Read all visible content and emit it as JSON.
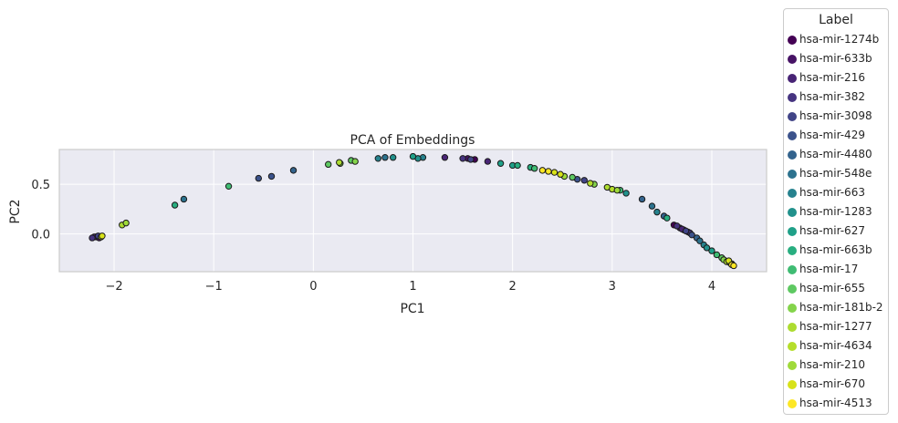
{
  "chart_data": {
    "type": "scatter",
    "title": "PCA of Embeddings",
    "xlabel": "PC1",
    "ylabel": "PC2",
    "xlim": [
      -2.55,
      4.55
    ],
    "ylim": [
      -0.38,
      0.85
    ],
    "xticks": [
      -2,
      -1,
      0,
      1,
      2,
      3,
      4
    ],
    "xtick_labels": [
      "−2",
      "−1",
      "0",
      "1",
      "2",
      "3",
      "4"
    ],
    "yticks": [
      0.0,
      0.5
    ],
    "ytick_labels": [
      "0.0",
      "0.5"
    ],
    "grid": true,
    "legend_title": "Label",
    "legend_placement": "outside-right",
    "series": [
      {
        "name": "hsa-mir-1274b",
        "color": "#440154",
        "x": [
          -2.18,
          3.62,
          3.72,
          1.62
        ],
        "y": [
          -0.03,
          0.09,
          0.04,
          0.75
        ]
      },
      {
        "name": "hsa-mir-633b",
        "color": "#471365",
        "x": [
          -2.15,
          3.68,
          3.76,
          1.55
        ],
        "y": [
          -0.04,
          0.06,
          0.02,
          0.76
        ]
      },
      {
        "name": "hsa-mir-216",
        "color": "#482475",
        "x": [
          -2.2,
          1.32,
          3.7,
          1.75
        ],
        "y": [
          -0.03,
          0.77,
          0.05,
          0.73
        ]
      },
      {
        "name": "hsa-mir-382",
        "color": "#463480",
        "x": [
          -2.22,
          1.5,
          3.65,
          3.78
        ],
        "y": [
          -0.04,
          0.76,
          0.08,
          0.01
        ]
      },
      {
        "name": "hsa-mir-3098",
        "color": "#414487",
        "x": [
          -2.16,
          1.58,
          3.74,
          2.72
        ],
        "y": [
          -0.02,
          0.75,
          0.03,
          0.54
        ]
      },
      {
        "name": "hsa-mir-429",
        "color": "#3b528b",
        "x": [
          -0.55,
          -0.42,
          2.65,
          3.8
        ],
        "y": [
          0.56,
          0.58,
          0.55,
          -0.01
        ]
      },
      {
        "name": "hsa-mir-4480",
        "color": "#33638d",
        "x": [
          -0.2,
          3.3,
          3.52,
          3.85
        ],
        "y": [
          0.64,
          0.35,
          0.18,
          -0.04
        ]
      },
      {
        "name": "hsa-mir-548e",
        "color": "#2c728e",
        "x": [
          -1.3,
          0.72,
          3.4,
          3.88
        ],
        "y": [
          0.35,
          0.77,
          0.28,
          -0.07
        ]
      },
      {
        "name": "hsa-mir-663",
        "color": "#26828e",
        "x": [
          0.65,
          1.1,
          3.45,
          3.92
        ],
        "y": [
          0.76,
          0.77,
          0.22,
          -0.11
        ]
      },
      {
        "name": "hsa-mir-1283",
        "color": "#21918c",
        "x": [
          0.8,
          1.05,
          3.95,
          3.14
        ],
        "y": [
          0.77,
          0.76,
          -0.14,
          0.41
        ]
      },
      {
        "name": "hsa-mir-627",
        "color": "#1fa088",
        "x": [
          1.0,
          1.88,
          2.0,
          4.0
        ],
        "y": [
          0.78,
          0.71,
          0.69,
          -0.17
        ]
      },
      {
        "name": "hsa-mir-663b",
        "color": "#28ae80",
        "x": [
          -1.39,
          2.05,
          2.18,
          3.55
        ],
        "y": [
          0.29,
          0.69,
          0.67,
          0.16
        ]
      },
      {
        "name": "hsa-mir-17",
        "color": "#3fbc73",
        "x": [
          -0.85,
          2.22,
          3.08,
          4.05
        ],
        "y": [
          0.48,
          0.66,
          0.44,
          -0.21
        ]
      },
      {
        "name": "hsa-mir-655",
        "color": "#5ec962",
        "x": [
          0.15,
          0.38,
          2.6,
          4.1
        ],
        "y": [
          0.7,
          0.74,
          0.57,
          -0.24
        ]
      },
      {
        "name": "hsa-mir-181b-2",
        "color": "#84d44b",
        "x": [
          0.27,
          0.42,
          2.82,
          4.12
        ],
        "y": [
          0.71,
          0.73,
          0.5,
          -0.26
        ]
      },
      {
        "name": "hsa-mir-1277",
        "color": "#addc30",
        "x": [
          -1.92,
          0.26,
          2.95,
          4.15
        ],
        "y": [
          0.09,
          0.72,
          0.47,
          -0.28
        ]
      },
      {
        "name": "hsa-mir-4634",
        "color": "#b5de2b",
        "x": [
          -2.13,
          3.0,
          4.18,
          2.78
        ],
        "y": [
          -0.03,
          0.45,
          -0.29,
          0.51
        ]
      },
      {
        "name": "hsa-mir-210",
        "color": "#9fda3a",
        "x": [
          -1.88,
          3.05,
          4.2,
          2.52
        ],
        "y": [
          0.11,
          0.44,
          -0.3,
          0.58
        ]
      },
      {
        "name": "hsa-mir-670",
        "color": "#d8e219",
        "x": [
          -2.12,
          2.42,
          2.48,
          4.17
        ],
        "y": [
          -0.02,
          0.62,
          0.6,
          -0.27
        ]
      },
      {
        "name": "hsa-mir-4513",
        "color": "#fde725",
        "x": [
          2.3,
          2.36,
          4.2,
          4.22
        ],
        "y": [
          0.64,
          0.63,
          -0.31,
          -0.32
        ]
      }
    ]
  }
}
